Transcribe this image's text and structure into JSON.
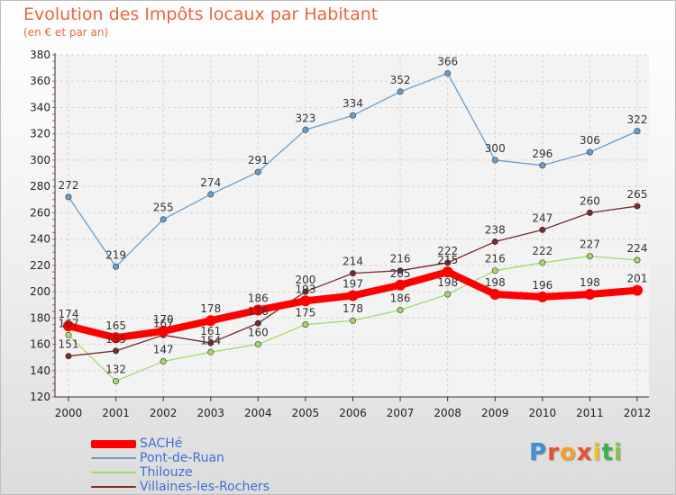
{
  "header": {
    "title": "Evolution des Impôts locaux par Habitant",
    "subtitle": "(en € et par an)"
  },
  "brand": {
    "letters": [
      "P",
      "r",
      "o",
      "x",
      "i",
      "t",
      "i"
    ],
    "colors": [
      "#3d8fd6",
      "#e8532d",
      "#f2a12a",
      "#e8532d",
      "#f2c12a",
      "#3db04b",
      "#8bc34a"
    ]
  },
  "chart_data": {
    "type": "line",
    "x": [
      "2000",
      "2001",
      "2002",
      "2003",
      "2004",
      "2005",
      "2006",
      "2007",
      "2008",
      "2009",
      "2010",
      "2011",
      "2012"
    ],
    "ylim": [
      120,
      380
    ],
    "yticks": [
      120,
      140,
      160,
      180,
      200,
      220,
      240,
      260,
      280,
      300,
      320,
      340,
      360,
      380
    ],
    "grid": true,
    "legend_position": "bottom-left",
    "series": [
      {
        "name": "SACHé",
        "color": "#ff0000",
        "thick": true,
        "values": [
          174,
          165,
          170,
          178,
          186,
          193,
          197,
          205,
          215,
          198,
          196,
          198,
          201
        ],
        "labels": [
          "174",
          "165",
          "170",
          "178",
          "186",
          "193",
          "197",
          "205",
          "215",
          "198",
          "196",
          "198",
          "201"
        ]
      },
      {
        "name": "Pont-de-Ruan",
        "color": "#6a9ec9",
        "values": [
          272,
          219,
          255,
          274,
          291,
          323,
          334,
          352,
          366,
          300,
          296,
          306,
          322
        ],
        "labels": [
          "272",
          "219",
          "255",
          "274",
          "291",
          "323",
          "334",
          "352",
          "366",
          "300",
          "296",
          "306",
          "322"
        ]
      },
      {
        "name": "Thilouze",
        "color": "#a2d96a",
        "values": [
          167,
          132,
          147,
          154,
          160,
          175,
          178,
          186,
          198,
          216,
          222,
          227,
          224
        ],
        "labels": [
          "167",
          "132",
          "147",
          "154",
          "160",
          "175",
          "178",
          "186",
          "198",
          "216",
          "222",
          "227",
          "224"
        ]
      },
      {
        "name": "Villaines-les-Rochers",
        "color": "#7a2a2a",
        "values": [
          151,
          155,
          167,
          161,
          176,
          200,
          214,
          216,
          222,
          238,
          247,
          260,
          265
        ],
        "labels": [
          "151",
          "155",
          "167",
          "161",
          "176",
          "200",
          "214",
          "216",
          "222",
          "238",
          "247",
          "260",
          "265"
        ]
      }
    ]
  }
}
